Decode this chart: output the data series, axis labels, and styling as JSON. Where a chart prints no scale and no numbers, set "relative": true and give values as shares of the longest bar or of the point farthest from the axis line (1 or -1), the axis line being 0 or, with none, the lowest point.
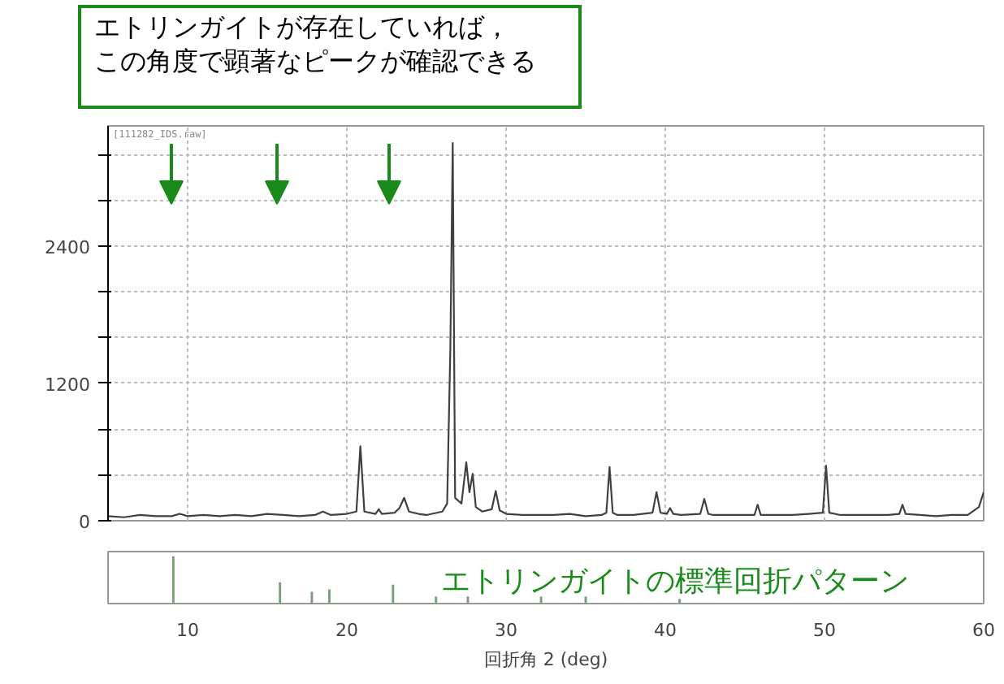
{
  "chart_data": [
    {
      "type": "line",
      "annotations": [
        "エトリンガイトが存在していれば，",
        "この角度で顕著なピークが確認できる",
        "[111282_IDS.raw]"
      ],
      "xlim": [
        5,
        60
      ],
      "xticks": [
        10,
        20,
        30,
        40,
        50,
        60
      ],
      "ylim": [
        0,
        3450
      ],
      "yticks": [
        0,
        {
          "value": 400,
          "label": null
        },
        {
          "value": 800,
          "label": null
        },
        1200,
        {
          "value": 1600,
          "label": null
        },
        {
          "value": 2000,
          "label": null
        },
        2400,
        {
          "value": 2800,
          "label": null
        },
        {
          "value": 3200,
          "label": null
        }
      ],
      "tick_labels": "y",
      "grid": true,
      "marker": "none",
      "line_style": "solid",
      "series": [
        {
          "color": "#404040",
          "x": [
            5,
            6,
            7,
            8,
            9,
            9.5,
            10,
            11,
            12,
            13,
            14,
            15,
            16,
            17,
            18,
            18.5,
            19,
            20,
            20.6,
            20.85,
            21.1,
            21.8,
            22.0,
            22.2,
            23.0,
            23.3,
            23.6,
            23.9,
            24.5,
            25,
            26,
            26.3,
            26.5,
            26.65,
            26.8,
            27.2,
            27.5,
            27.7,
            27.9,
            28.1,
            28.5,
            29.1,
            29.35,
            29.6,
            30,
            31,
            32,
            33,
            34,
            35,
            36,
            36.3,
            36.5,
            36.7,
            37,
            38,
            39.2,
            39.45,
            39.7,
            40.1,
            40.3,
            40.5,
            41,
            42.2,
            42.45,
            42.7,
            43,
            44,
            45.6,
            45.8,
            46,
            47,
            48,
            49,
            49.9,
            50.1,
            50.3,
            51,
            52,
            53,
            54,
            54.7,
            54.9,
            55.1,
            56,
            57,
            58,
            59,
            59.7,
            60
          ],
          "values": [
            40,
            30,
            50,
            40,
            40,
            60,
            40,
            50,
            40,
            50,
            40,
            60,
            50,
            40,
            50,
            80,
            50,
            60,
            80,
            650,
            80,
            60,
            100,
            60,
            70,
            110,
            200,
            80,
            60,
            50,
            80,
            150,
            1500,
            3300,
            200,
            150,
            510,
            250,
            410,
            120,
            80,
            100,
            260,
            90,
            60,
            50,
            50,
            50,
            60,
            40,
            50,
            70,
            470,
            70,
            50,
            50,
            70,
            250,
            70,
            60,
            110,
            60,
            50,
            60,
            190,
            60,
            50,
            50,
            50,
            140,
            50,
            50,
            50,
            60,
            70,
            480,
            70,
            50,
            50,
            50,
            50,
            60,
            140,
            60,
            50,
            40,
            50,
            50,
            120,
            250
          ]
        }
      ]
    },
    {
      "type": "bar",
      "relative": true,
      "tick_labels": "x",
      "xlabel": "回折角 2 (deg)",
      "annotations": [
        "エトリンガイトの標準回折パターン"
      ],
      "xlim": [
        5,
        60
      ],
      "xticks": [
        10,
        20,
        30,
        40,
        50,
        60
      ],
      "x": [
        9.1,
        15.8,
        17.8,
        18.9,
        22.9,
        25.6,
        27.6,
        32.2,
        35.0,
        40.9
      ],
      "series": [
        {
          "color": "#7aa07a",
          "values": [
            1,
            0.45,
            0.25,
            0.3,
            0.4,
            0.15,
            0.15,
            0.15,
            0.15,
            0.1
          ]
        }
      ]
    }
  ]
}
